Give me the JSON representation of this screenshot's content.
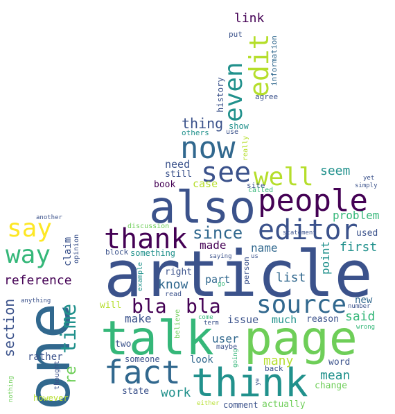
{
  "title": "Word cloud in thumbs-up shape",
  "palette": {
    "dark_purple": "#440154",
    "indigo": "#3b528b",
    "blue": "#31688e",
    "teal": "#21918c",
    "green": "#35b779",
    "light_green": "#6ece58",
    "lime": "#b5de2b",
    "yellow": "#fde725"
  },
  "words": [
    {
      "text": "article"
    },
    {
      "text": "talk"
    },
    {
      "text": "page"
    },
    {
      "text": "one"
    },
    {
      "text": "think"
    },
    {
      "text": "also"
    },
    {
      "text": "people"
    },
    {
      "text": "fact"
    },
    {
      "text": "source"
    },
    {
      "text": "thank"
    },
    {
      "text": "editor"
    },
    {
      "text": "now"
    },
    {
      "text": "see"
    },
    {
      "text": "well"
    },
    {
      "text": "bla"
    },
    {
      "text": "bla"
    },
    {
      "text": "say"
    },
    {
      "text": "way"
    },
    {
      "text": "time"
    },
    {
      "text": "edit"
    },
    {
      "text": "even"
    },
    {
      "text": "since"
    },
    {
      "text": "section"
    },
    {
      "text": "reference"
    },
    {
      "text": "link"
    },
    {
      "text": "thing"
    },
    {
      "text": "seem"
    },
    {
      "text": "work"
    },
    {
      "text": "first"
    },
    {
      "text": "name"
    },
    {
      "text": "made"
    },
    {
      "text": "list"
    },
    {
      "text": "know"
    },
    {
      "text": "point"
    },
    {
      "text": "problem"
    },
    {
      "text": "user"
    },
    {
      "text": "mean"
    },
    {
      "text": "many"
    },
    {
      "text": "said"
    },
    {
      "text": "new"
    },
    {
      "text": "re"
    },
    {
      "text": "claim"
    },
    {
      "text": "case"
    },
    {
      "text": "need"
    },
    {
      "text": "still"
    },
    {
      "text": "book"
    },
    {
      "text": "make"
    },
    {
      "text": "issue"
    },
    {
      "text": "much"
    },
    {
      "text": "part"
    },
    {
      "text": "right"
    },
    {
      "text": "look"
    },
    {
      "text": "rather"
    },
    {
      "text": "two"
    },
    {
      "text": "history"
    },
    {
      "text": "information"
    },
    {
      "text": "show"
    },
    {
      "text": "others"
    },
    {
      "text": "put"
    },
    {
      "text": "agree"
    },
    {
      "text": "statement"
    },
    {
      "text": "used"
    },
    {
      "text": "reason"
    },
    {
      "text": "word"
    },
    {
      "text": "change"
    },
    {
      "text": "comment"
    },
    {
      "text": "actually"
    },
    {
      "text": "state"
    },
    {
      "text": "someone"
    },
    {
      "text": "something"
    },
    {
      "text": "discussion"
    },
    {
      "text": "example"
    },
    {
      "text": "however"
    },
    {
      "text": "thought"
    },
    {
      "text": "nothing"
    },
    {
      "text": "anything"
    },
    {
      "text": "opinion"
    },
    {
      "text": "another"
    },
    {
      "text": "block"
    },
    {
      "text": "will"
    },
    {
      "text": "person"
    },
    {
      "text": "site"
    },
    {
      "text": "called"
    },
    {
      "text": "simply"
    },
    {
      "text": "yet"
    },
    {
      "text": "wrong"
    },
    {
      "text": "number"
    },
    {
      "text": "term"
    },
    {
      "text": "come"
    },
    {
      "text": "maybe"
    },
    {
      "text": "believe"
    },
    {
      "text": "going"
    },
    {
      "text": "back"
    },
    {
      "text": "either"
    },
    {
      "text": "ye"
    },
    {
      "text": "us"
    },
    {
      "text": "saying"
    },
    {
      "text": "go"
    },
    {
      "text": "read"
    },
    {
      "text": "really"
    },
    {
      "text": "use"
    }
  ]
}
